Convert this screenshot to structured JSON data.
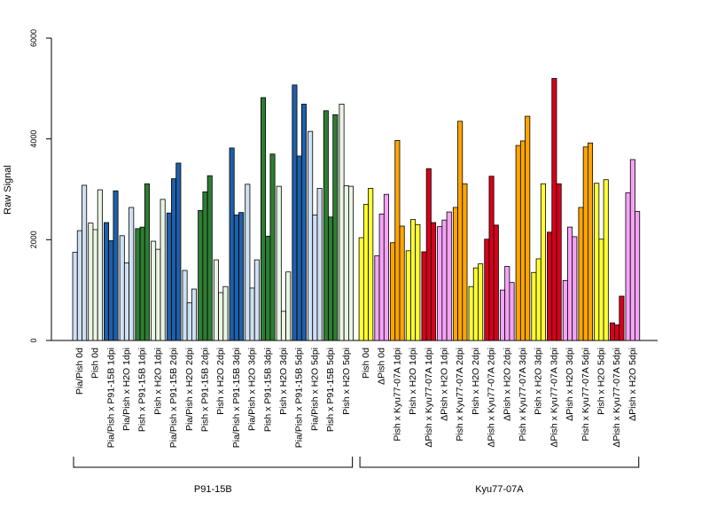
{
  "chart_data": {
    "type": "bar",
    "title": "",
    "ylabel": "Raw Signal",
    "xlabel": "",
    "ylim": [
      0,
      6000
    ],
    "yticks": [
      0,
      2000,
      4000,
      6000
    ],
    "grid": false,
    "colors": {
      "light_blue": "#cfe0f2",
      "dark_blue": "#1f5fa8",
      "light_green": "#eaf5e4",
      "dark_green": "#2e7d32",
      "yellow": "#ffff33",
      "orange": "#ffa500",
      "pink": "#f6a3f6",
      "red": "#d7001c"
    },
    "categories": [
      "Pia/Pish 0d",
      "Pish 0d",
      "Pia/Pish x P91-15B 1dpi",
      "Pia/Pish x H2O 1dpi",
      "Pish x P91-15B 1dpi",
      "Pish x H2O 1dpi",
      "Pia/Pish x P91-15B 2dpi",
      "Pia/Pish x H2O 2dpi",
      "Pish x P91-15B 2dpi",
      "Pish x H2O 2dpi",
      "Pia/Pish x P91-15B 3dpi",
      "Pia/Pish x H2O 3dpi",
      "Pish x P91-15B 3dpi",
      "Pish x H2O 3dpi",
      "Pia/Pish x P91-15B 5dpi",
      "Pia/Pish x H2O 5dpi",
      "Pish x P91-15B 5dpi",
      "Pish x H2O 5dpi",
      "Pish 0d",
      "ΔPish 0d",
      "Pish x Kyu77-07A 1dpi",
      "Pish x H2O 1dpi",
      "ΔPish x Kyu77-07A 1dpi",
      "ΔPish x H2O 1dpi",
      "Pish x Kyu77-07A 2dpi",
      "Pish x H2O 2dpi",
      "ΔPish x Kyu77-07A 2dpi",
      "ΔPish x H2O 2dpi",
      "Pish x Kyu77-07A 3dpi",
      "Pish x H2O 3dpi",
      "ΔPish x Kyu77-07A 3dpi",
      "ΔPish x H2O 3dpi",
      "Pish x Kyu77-07A 5dpi",
      "Pish x H2O 5dpi",
      "ΔPish x Kyu77-07A 5dpi",
      "ΔPish x H2O 5dpi"
    ],
    "groups": [
      {
        "label": "P91-15B",
        "first": 0,
        "last": 17
      },
      {
        "label": "Kyu77-07A",
        "first": 18,
        "last": 35
      }
    ],
    "bar_colors": [
      "light_blue",
      "light_green",
      "dark_blue",
      "light_blue",
      "dark_green",
      "light_green",
      "dark_blue",
      "light_blue",
      "dark_green",
      "light_green",
      "dark_blue",
      "light_blue",
      "dark_green",
      "light_green",
      "dark_blue",
      "light_blue",
      "dark_green",
      "light_green",
      "yellow",
      "pink",
      "orange",
      "yellow",
      "red",
      "pink",
      "orange",
      "yellow",
      "red",
      "pink",
      "orange",
      "yellow",
      "red",
      "pink",
      "orange",
      "yellow",
      "red",
      "pink"
    ],
    "values": [
      [
        1750,
        2180,
        3080
      ],
      [
        2330,
        2200,
        2990
      ],
      [
        2340,
        1980,
        2970
      ],
      [
        2080,
        1540,
        2640
      ],
      [
        2220,
        2250,
        3110
      ],
      [
        1970,
        1810,
        2800
      ],
      [
        2530,
        3210,
        3520
      ],
      [
        1390,
        750,
        1020
      ],
      [
        2580,
        2950,
        3270
      ],
      [
        1600,
        950,
        1070
      ],
      [
        3820,
        2490,
        2540
      ],
      [
        3100,
        1040,
        1600
      ],
      [
        4820,
        2070,
        3700
      ],
      [
        3060,
        580,
        1360
      ],
      [
        5070,
        3660,
        4690
      ],
      [
        4150,
        2490,
        3020
      ],
      [
        4560,
        2450,
        4480
      ],
      [
        4690,
        3070,
        3060
      ],
      [
        2040,
        2700,
        3020
      ],
      [
        1680,
        2510,
        2900
      ],
      [
        1940,
        3970,
        2270
      ],
      [
        1780,
        2400,
        2300
      ],
      [
        1760,
        3410,
        2340
      ],
      [
        2260,
        2390,
        2550
      ],
      [
        2640,
        4350,
        3110
      ],
      [
        1070,
        1440,
        1520
      ],
      [
        2010,
        3260,
        2290
      ],
      [
        1000,
        1470,
        1150
      ],
      [
        3870,
        3960,
        4450
      ],
      [
        1350,
        1620,
        3110
      ],
      [
        2150,
        5200,
        3110
      ],
      [
        1190,
        2250,
        2060
      ],
      [
        2640,
        3840,
        3920
      ],
      [
        3120,
        2010,
        3190
      ],
      [
        350,
        310,
        880
      ],
      [
        2930,
        3590,
        2560
      ]
    ]
  }
}
